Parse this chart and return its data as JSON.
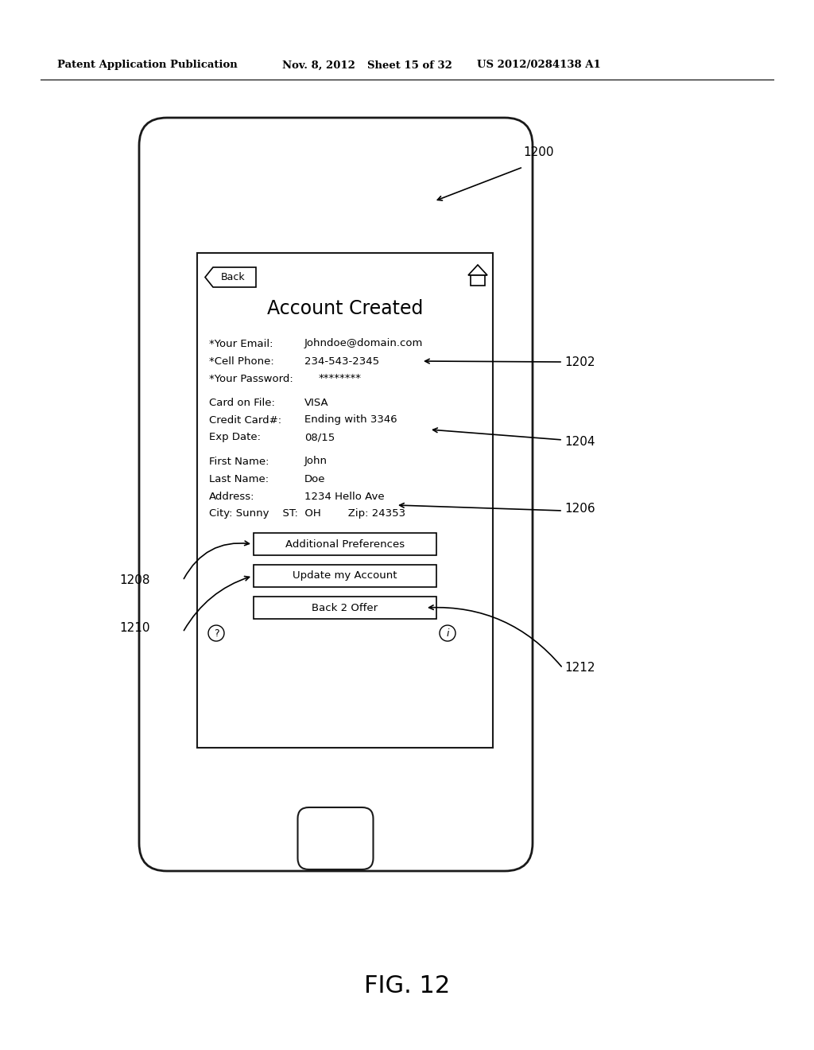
{
  "bg_color": "#ffffff",
  "header_text": "Patent Application Publication",
  "header_date": "Nov. 8, 2012",
  "header_sheet": "Sheet 15 of 32",
  "header_patent": "US 2012/0284138 A1",
  "fig_label": "FIG. 12",
  "ref_1200": "1200",
  "ref_1202": "1202",
  "ref_1204": "1204",
  "ref_1206": "1206",
  "ref_1208": "1208",
  "ref_1210": "1210",
  "ref_1212": "1212",
  "title_text": "Account Created",
  "back_btn": "Back",
  "email_label": "*Your Email:",
  "email_value": "Johndoe@domain.com",
  "phone_label": "*Cell Phone:",
  "phone_value": "234-543-2345",
  "pass_label": "*Your Password:",
  "pass_value": "********",
  "card_label": "Card on File:",
  "card_value": "VISA",
  "cc_label": "Credit Card#:",
  "cc_value": "Ending with 3346",
  "exp_label": "Exp Date:",
  "exp_value": "08/15",
  "fname_label": "First Name:",
  "fname_value": "John",
  "lname_label": "Last Name:",
  "lname_value": "Doe",
  "addr_label": "Address:",
  "addr_value": "1234 Hello Ave",
  "city_line": "City: Sunny    ST:  OH        Zip: 24353",
  "btn1": "Additional Preferences",
  "btn2": "Update my Account",
  "btn3": "Back 2 Offer"
}
